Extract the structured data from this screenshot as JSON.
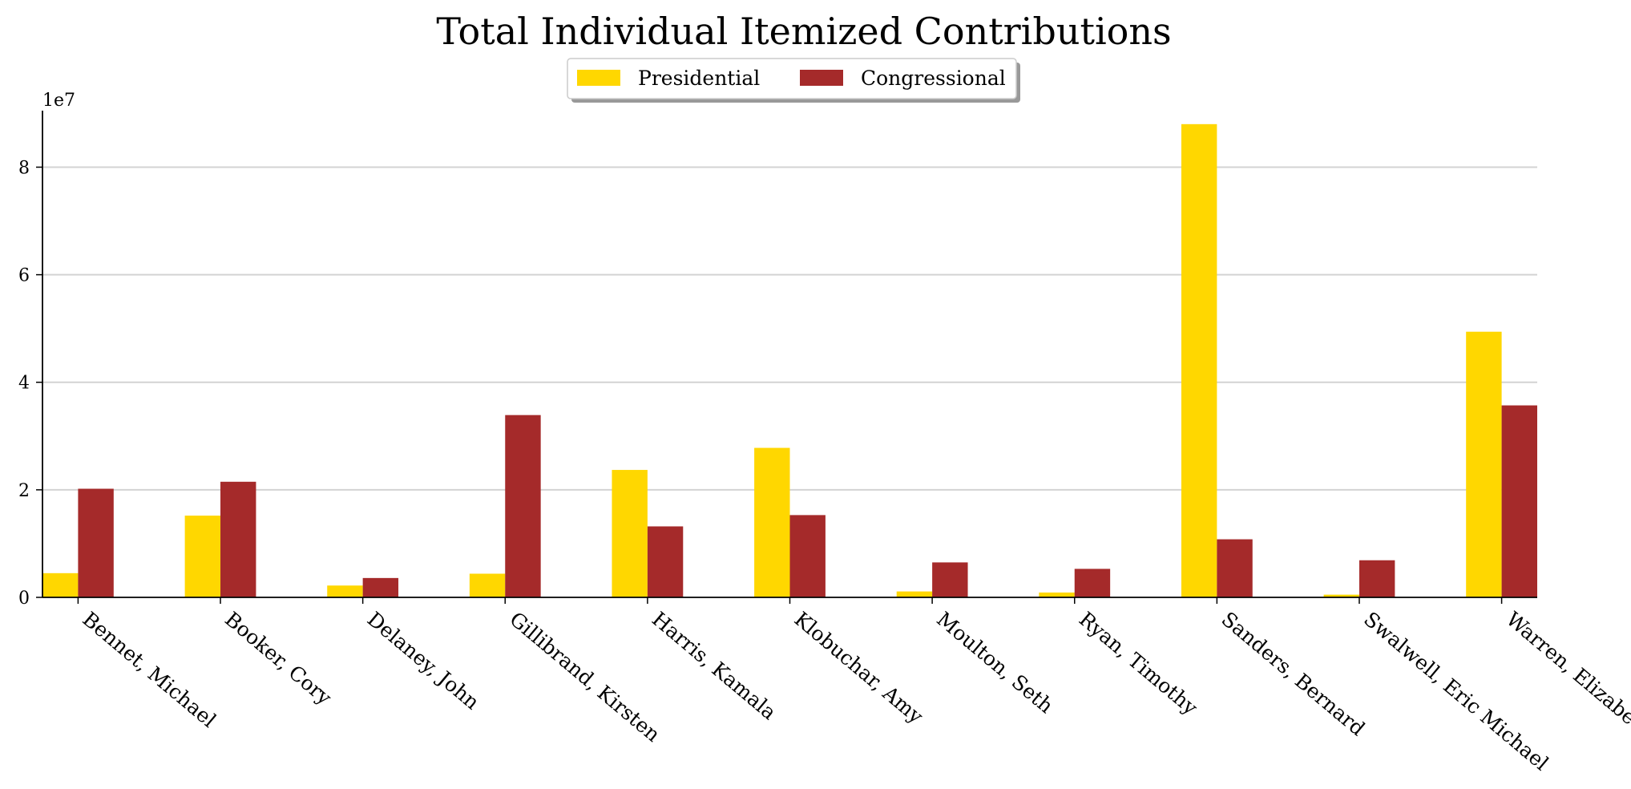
{
  "chart_data": {
    "type": "bar",
    "title": "Total Individual Itemized Contributions",
    "xlabel": "",
    "ylabel": "",
    "y_offset_label": "1e7",
    "ylim": [
      0,
      92000000
    ],
    "yticks": [
      0,
      20000000,
      40000000,
      60000000,
      80000000
    ],
    "ytick_labels": [
      "0",
      "2",
      "4",
      "6",
      "8"
    ],
    "grid": "horizontal",
    "legend_position": "top-center",
    "categories": [
      "Bennet, Michael",
      "Booker, Cory",
      "Delaney, John",
      "Gillibrand, Kirsten",
      "Harris, Kamala",
      "Klobuchar, Amy",
      "Moulton, Seth",
      "Ryan, Timothy",
      "Sanders, Bernard",
      "Swalwell, Eric Michael",
      "Warren, Elizabeth"
    ],
    "series": [
      {
        "name": "Presidential",
        "color": "#FFD700",
        "values": [
          4500000,
          15200000,
          2200000,
          4400000,
          23700000,
          27800000,
          1100000,
          900000,
          88000000,
          500000,
          49400000
        ]
      },
      {
        "name": "Congressional",
        "color": "#A52A2A",
        "values": [
          20200000,
          21500000,
          3600000,
          33900000,
          13200000,
          15300000,
          6500000,
          5300000,
          10800000,
          6900000,
          35700000
        ]
      }
    ]
  }
}
